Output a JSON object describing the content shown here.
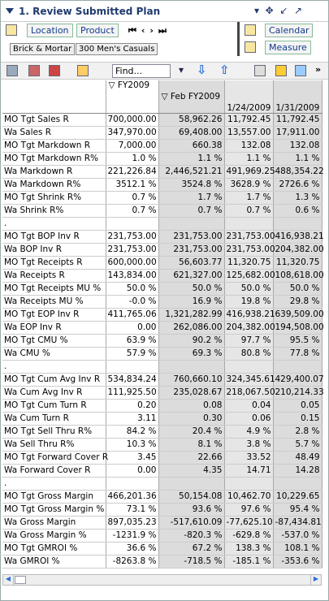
{
  "header": {
    "title": "1. Review Submitted Plan"
  },
  "toolbar": {
    "location": "Location",
    "product": "Product",
    "calendar": "Calendar",
    "measure": "Measure",
    "breadcrumbs": [
      "Brick & Mortar",
      "300 Men's Casuals"
    ],
    "find": "Find..."
  },
  "table": {
    "columns": [
      "FY2009",
      "Feb FY2009",
      "1/24/2009",
      "1/31/2009"
    ],
    "rows": [
      {
        "label": "MO Tgt Sales R",
        "values": [
          "700,000.00",
          "58,962.26",
          "11,792.45",
          "11,792.45"
        ]
      },
      {
        "label": "Wa Sales R",
        "values": [
          "347,970.00",
          "69,408.00",
          "13,557.00",
          "17,911.00"
        ]
      },
      {
        "label": "MO Tgt Markdown R",
        "values": [
          "7,000.00",
          "660.38",
          "132.08",
          "132.08"
        ]
      },
      {
        "label": "MO Tgt Markdown R%",
        "values": [
          "1.0 %",
          "1.1 %",
          "1.1 %",
          "1.1 %"
        ]
      },
      {
        "label": "Wa Markdown R",
        "values": [
          "221,226.84",
          "2,446,521.21",
          "491,969.25",
          "488,354.22"
        ]
      },
      {
        "label": "Wa Markdown R%",
        "values": [
          "3512.1 %",
          "3524.8 %",
          "3628.9 %",
          "2726.6 %"
        ]
      },
      {
        "label": "MO Tgt Shrink R%",
        "values": [
          "0.7 %",
          "1.7 %",
          "1.7 %",
          "1.3 %"
        ]
      },
      {
        "label": "Wa Shrink R%",
        "values": [
          "0.7 %",
          "0.7 %",
          "0.7 %",
          "0.6 %"
        ]
      },
      {
        "label": "."
      },
      {
        "label": "MO Tgt BOP Inv R",
        "values": [
          "231,753.00",
          "231,753.00",
          "231,753.00",
          "416,938.21"
        ]
      },
      {
        "label": "Wa BOP Inv R",
        "values": [
          "231,753.00",
          "231,753.00",
          "231,753.00",
          "204,382.00"
        ]
      },
      {
        "label": "MO Tgt Receipts R",
        "values": [
          "600,000.00",
          "56,603.77",
          "11,320.75",
          "11,320.75"
        ]
      },
      {
        "label": "Wa Receipts R",
        "values": [
          "143,834.00",
          "621,327.00",
          "125,682.00",
          "108,618.00"
        ]
      },
      {
        "label": "MO Tgt Receipts MU %",
        "values": [
          "50.0 %",
          "50.0 %",
          "50.0 %",
          "50.0 %"
        ]
      },
      {
        "label": "Wa Receipts MU %",
        "values": [
          "-0.0 %",
          "16.9 %",
          "19.8 %",
          "29.8 %"
        ]
      },
      {
        "label": "MO Tgt EOP Inv R",
        "values": [
          "411,765.06",
          "1,321,282.99",
          "416,938.21",
          "639,509.00"
        ]
      },
      {
        "label": "Wa EOP Inv R",
        "values": [
          "0.00",
          "262,086.00",
          "204,382.00",
          "194,508.00"
        ]
      },
      {
        "label": "MO Tgt CMU %",
        "values": [
          "63.9 %",
          "90.2 %",
          "97.7 %",
          "95.5 %"
        ]
      },
      {
        "label": "Wa CMU %",
        "values": [
          "57.9 %",
          "69.3 %",
          "80.8 %",
          "77.8 %"
        ]
      },
      {
        "label": "."
      },
      {
        "label": "MO Tgt Cum Avg Inv R",
        "values": [
          "534,834.24",
          "760,660.10",
          "324,345.61",
          "429,400.07"
        ]
      },
      {
        "label": "Wa Cum Avg Inv R",
        "values": [
          "111,925.50",
          "235,028.67",
          "218,067.50",
          "210,214.33"
        ]
      },
      {
        "label": "MO Tgt Cum Turn R",
        "values": [
          "0.20",
          "0.08",
          "0.04",
          "0.05"
        ]
      },
      {
        "label": "Wa Cum Turn R",
        "values": [
          "3.11",
          "0.30",
          "0.06",
          "0.15"
        ]
      },
      {
        "label": "MO Tgt Sell Thru R%",
        "values": [
          "84.2 %",
          "20.4 %",
          "4.9 %",
          "2.8 %"
        ]
      },
      {
        "label": "Wa Sell Thru R%",
        "values": [
          "10.3 %",
          "8.1 %",
          "3.8 %",
          "5.7 %"
        ]
      },
      {
        "label": "MO Tgt Forward Cover R",
        "values": [
          "3.45",
          "22.66",
          "33.52",
          "48.49"
        ]
      },
      {
        "label": "Wa Forward Cover R",
        "values": [
          "0.00",
          "4.35",
          "14.71",
          "14.28"
        ]
      },
      {
        "label": "."
      },
      {
        "label": "MO Tgt Gross Margin",
        "values": [
          "466,201.36",
          "50,154.08",
          "10,462.70",
          "10,229.65"
        ]
      },
      {
        "label": "MO Tgt Gross Margin %",
        "values": [
          "73.1 %",
          "93.6 %",
          "97.6 %",
          "95.4 %"
        ]
      },
      {
        "label": "Wa Gross Margin",
        "values": [
          "897,035.23",
          "-517,610.09",
          "-77,625.10",
          "-87,434.81"
        ]
      },
      {
        "label": "Wa Gross Margin %",
        "values": [
          "-1231.9 %",
          "-820.3 %",
          "-629.8 %",
          "-537.0 %"
        ]
      },
      {
        "label": "MO Tgt GMROI %",
        "values": [
          "36.6 %",
          "67.2 %",
          "138.3 %",
          "108.1 %"
        ]
      },
      {
        "label": "Wa GMROI %",
        "values": [
          "-8263.8 %",
          "-718.5 %",
          "-185.1 %",
          "-353.6 %"
        ]
      }
    ]
  }
}
